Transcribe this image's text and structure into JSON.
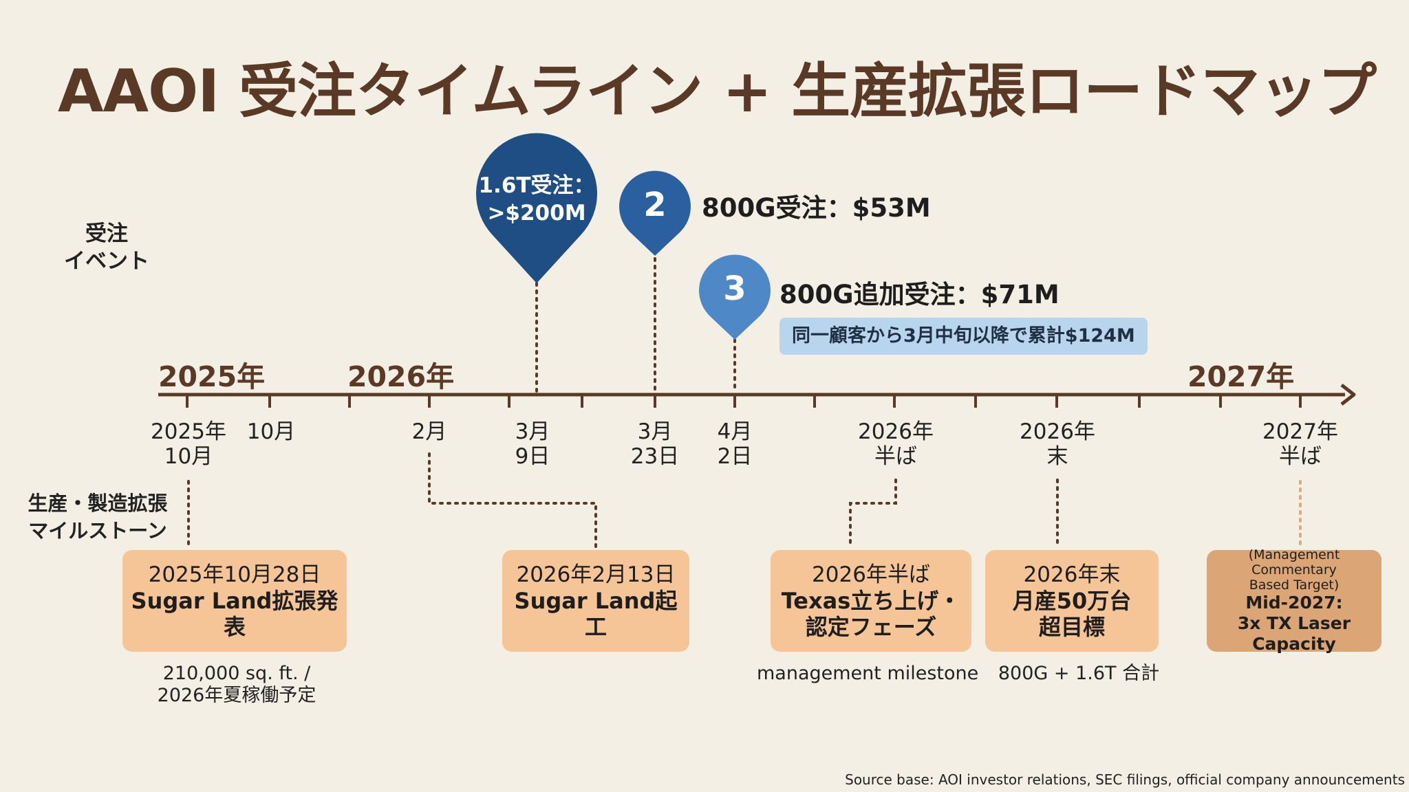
{
  "title": "AAOI 受注タイムライン + 生産拡張ロードマップ",
  "lanes": {
    "orders_line1": "受注",
    "orders_line2": "イベント",
    "production_line1": "生産・製造拡張",
    "production_line2": "マイルストーン"
  },
  "years": [
    "2025年",
    "2026年",
    "2027年"
  ],
  "dates": [
    {
      "line1": "2025年",
      "line2": "10月"
    },
    {
      "line1": "10月",
      "line2": ""
    },
    {
      "line1": "2月",
      "line2": ""
    },
    {
      "line1": "3月",
      "line2": "9日"
    },
    {
      "line1": "3月",
      "line2": "23日"
    },
    {
      "line1": "4月",
      "line2": "2日"
    },
    {
      "line1": "2026年",
      "line2": "半ば"
    },
    {
      "line1": "2026年",
      "line2": "末"
    },
    {
      "line1": "2027年",
      "line2": "半ば"
    }
  ],
  "order_events": {
    "e1": {
      "line1": "1.6T受注：",
      "line2": ">$200M",
      "color": "#1e4e84"
    },
    "e2": {
      "marker": "2",
      "label": "800G受注：$53M",
      "color": "#2a60a0"
    },
    "e3": {
      "marker": "3",
      "label": "800G追加受注：$71M",
      "color": "#4f88c6",
      "callout": "同一顧客から3月中旬以降で累計$124M"
    }
  },
  "milestones": {
    "m1": {
      "date": "2025年10月28日",
      "line1": "Sugar Land拡張発",
      "line2": "表",
      "note1": "210,000 sq. ft. /",
      "note2": "2026年夏稼働予定"
    },
    "m2": {
      "date": "2026年2月13日",
      "line1": "Sugar Land起工"
    },
    "m3": {
      "date": "2026年半ば",
      "line1": "Texas立ち上げ・",
      "line2": "認定フェーズ",
      "note1": "management milestone"
    },
    "m4": {
      "date": "2026年末",
      "line1": "月産50万台",
      "line2": "超目標",
      "note1": "800G + 1.6T 合計"
    },
    "m5": {
      "note_line1": "(Management Commentary",
      "note_line2": "Based Target)",
      "line1": "Mid-2027:",
      "line2": "3x TX Laser",
      "line3": "Capacity"
    }
  },
  "colors": {
    "timeline": "#5a3a26",
    "milestone_box": "#f6c597",
    "milestone_box_dark": "#dca575"
  },
  "source": "Source base: AOI investor relations, SEC filings, official company announcements"
}
